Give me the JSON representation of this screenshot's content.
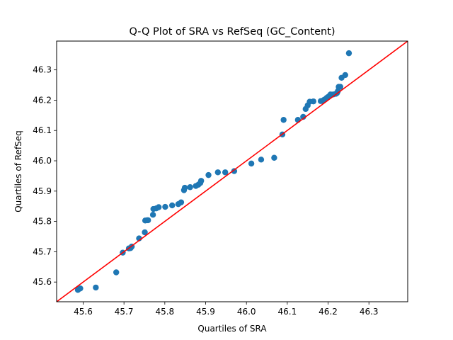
{
  "chart_data": {
    "type": "scatter",
    "title": "Q-Q Plot of SRA vs RefSeq (GC_Content)",
    "xlabel": "Quartiles of SRA",
    "ylabel": "Quartiles of RefSeq",
    "xlim": [
      45.535,
      46.395
    ],
    "ylim": [
      45.535,
      46.395
    ],
    "xticks": [
      "45.6",
      "45.7",
      "45.8",
      "45.9",
      "46.0",
      "46.1",
      "46.2",
      "46.3"
    ],
    "yticks": [
      "45.6",
      "45.7",
      "45.8",
      "45.9",
      "46.0",
      "46.1",
      "46.2",
      "46.3"
    ],
    "grid": false,
    "legend": "none",
    "point_color": "#1f77b4",
    "reference_line": {
      "label": "",
      "color": "#ff0000",
      "from": [
        45.535,
        45.535
      ],
      "to": [
        46.395,
        46.395
      ]
    },
    "series": [
      {
        "x": [
          45.587,
          45.591,
          45.593,
          45.631,
          45.681,
          45.697,
          45.712,
          45.716,
          45.719,
          45.737,
          45.751,
          45.752,
          45.757,
          45.759,
          45.771,
          45.772,
          45.779,
          45.785,
          45.801,
          45.818,
          45.833,
          45.84,
          45.847,
          45.849,
          45.862,
          45.876,
          45.882,
          45.887,
          45.889,
          45.907,
          45.93,
          45.948,
          45.97,
          46.012,
          46.036,
          46.068,
          46.088,
          46.091,
          46.126,
          46.139,
          46.145,
          46.15,
          46.155,
          46.164,
          46.182,
          46.186,
          46.19,
          46.193,
          46.196,
          46.199,
          46.203,
          46.206,
          46.213,
          46.219,
          46.222,
          46.224,
          46.226,
          46.23,
          46.233,
          46.242,
          46.251
        ],
        "y": [
          45.574,
          45.578,
          45.579,
          45.582,
          45.632,
          45.697,
          45.711,
          45.712,
          45.717,
          45.744,
          45.764,
          45.803,
          45.804,
          45.804,
          45.822,
          45.841,
          45.843,
          45.847,
          45.848,
          45.853,
          45.857,
          45.863,
          45.903,
          45.911,
          45.913,
          45.917,
          45.921,
          45.927,
          45.934,
          45.953,
          45.962,
          45.962,
          45.966,
          45.991,
          46.004,
          46.01,
          46.087,
          46.135,
          46.135,
          46.145,
          46.171,
          46.183,
          46.195,
          46.196,
          46.197,
          46.198,
          46.201,
          46.203,
          46.207,
          46.21,
          46.214,
          46.219,
          46.219,
          46.221,
          46.224,
          46.23,
          46.244,
          46.244,
          46.274,
          46.283,
          46.355
        ]
      }
    ]
  }
}
